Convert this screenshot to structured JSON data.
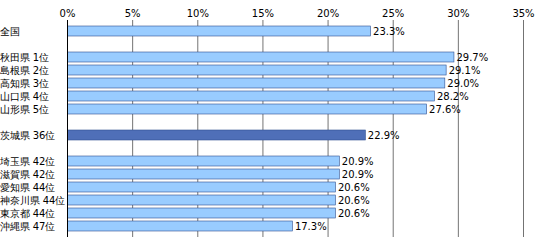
{
  "chart_data": {
    "type": "bar",
    "orientation": "horizontal",
    "categories": [
      "全国",
      null,
      "秋田県 1位",
      "島根県 2位",
      "高知県 3位",
      "山口県 4位",
      "山形県 5位",
      null,
      "茨城県 36位",
      null,
      "埼玉県 42位",
      "滋賀県 42位",
      "愛知県 44位",
      "神奈川県 44位",
      "東京都 44位",
      "沖縄県 47位"
    ],
    "values": [
      23.3,
      null,
      29.7,
      29.1,
      29.0,
      28.2,
      27.6,
      null,
      22.9,
      null,
      20.9,
      20.9,
      20.6,
      20.6,
      20.6,
      17.3
    ],
    "value_labels": [
      "23.3%",
      null,
      "29.7%",
      "29.1%",
      "29.0%",
      "28.2%",
      "27.6%",
      null,
      "22.9%",
      null,
      "20.9%",
      "20.9%",
      "20.6%",
      "20.6%",
      "20.6%",
      "17.3%"
    ],
    "colors": [
      "#99ccff",
      null,
      "#99ccff",
      "#99ccff",
      "#99ccff",
      "#99ccff",
      "#99ccff",
      null,
      "#4f6fb8",
      null,
      "#99ccff",
      "#99ccff",
      "#99ccff",
      "#99ccff",
      "#99ccff",
      "#99ccff"
    ],
    "xlim": [
      0,
      35
    ],
    "xticks": [
      {
        "value": 0,
        "label": "0%"
      },
      {
        "value": 5,
        "label": "5%"
      },
      {
        "value": 10,
        "label": "10%"
      },
      {
        "value": 15,
        "label": "15%"
      },
      {
        "value": 20,
        "label": "20%"
      },
      {
        "value": 25,
        "label": "25%"
      },
      {
        "value": 30,
        "label": "30%"
      },
      {
        "value": 35,
        "label": "35%"
      }
    ],
    "grid": true,
    "data_labels": true
  }
}
